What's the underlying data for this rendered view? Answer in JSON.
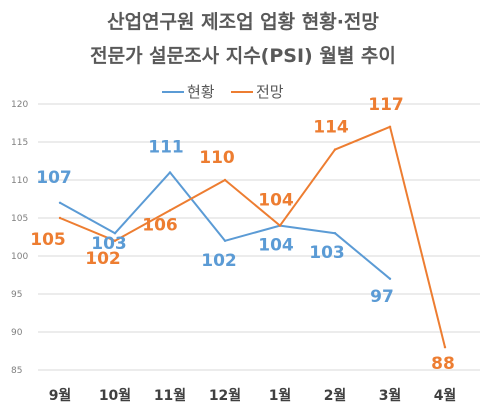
{
  "chart_data": {
    "type": "line",
    "title_lines": [
      "산업연구원 제조업 업황 현황·전망",
      "전문가 설문조사 지수(PSI) 월별 추이"
    ],
    "categories": [
      "9월",
      "10월",
      "11월",
      "12월",
      "1월",
      "2월",
      "3월",
      "4월"
    ],
    "ylim": [
      85,
      120
    ],
    "yticks": [
      85,
      90,
      95,
      100,
      105,
      110,
      115,
      120
    ],
    "grid": true,
    "legend_position": "top",
    "series": [
      {
        "name": "현황",
        "color": "#5b9bd5",
        "values": [
          107,
          103,
          111,
          102,
          104,
          103,
          97,
          null
        ]
      },
      {
        "name": "전망",
        "color": "#ed7d31",
        "values": [
          105,
          102,
          106,
          110,
          104,
          114,
          117,
          88
        ]
      }
    ]
  }
}
